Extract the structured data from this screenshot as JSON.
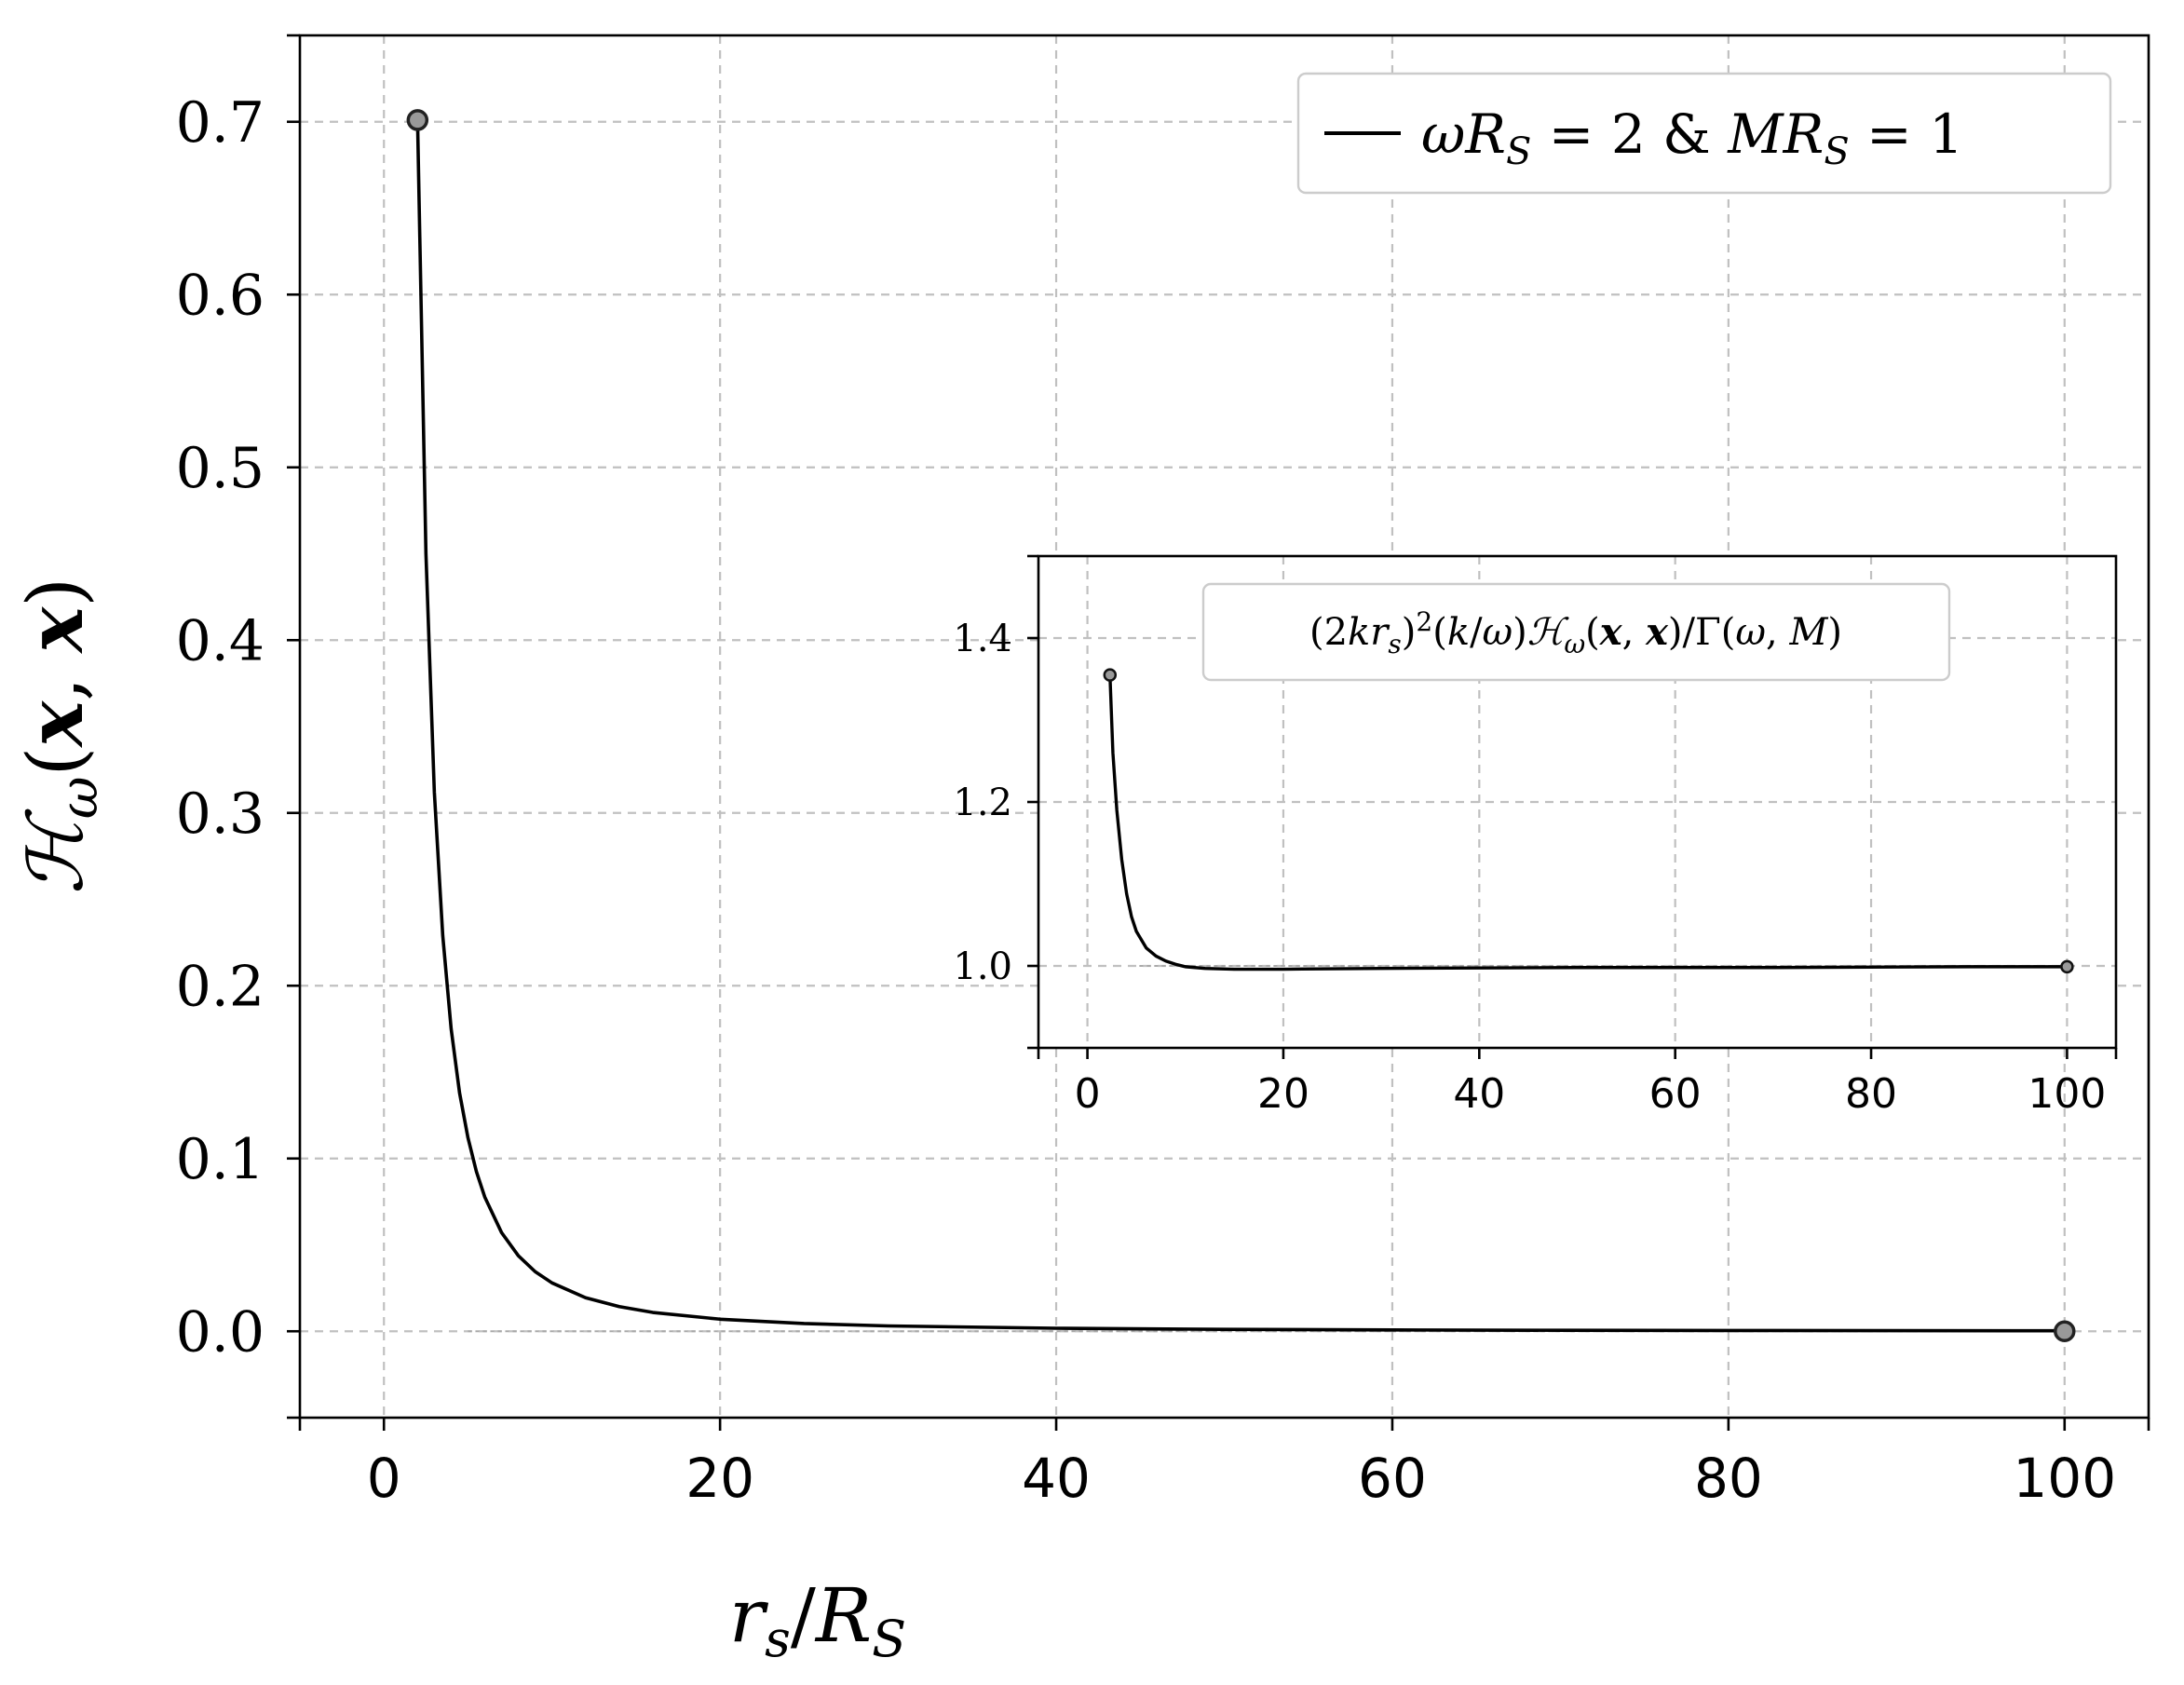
{
  "chart_data": [
    {
      "type": "line",
      "role": "main",
      "xlabel": "r_s / R_S",
      "ylabel": "ℋ_ω(x, x)",
      "xlim": [
        -5,
        105
      ],
      "ylim": [
        -0.05,
        0.75
      ],
      "xticks": [
        0,
        20,
        40,
        60,
        80,
        100
      ],
      "yticks": [
        0.0,
        0.1,
        0.2,
        0.3,
        0.4,
        0.5,
        0.6,
        0.7
      ],
      "xtick_labels": [
        "0",
        "20",
        "40",
        "60",
        "80",
        "100"
      ],
      "ytick_labels": [
        "0.0",
        "0.1",
        "0.2",
        "0.3",
        "0.4",
        "0.5",
        "0.6",
        "0.7"
      ],
      "grid": true,
      "legend_position": "top-right",
      "series": [
        {
          "name": "ωR_S = 2 & MR_S = 1",
          "color": "#000000",
          "x": [
            2,
            2.5,
            3,
            3.5,
            4,
            4.5,
            5,
            5.5,
            6,
            7,
            8,
            9,
            10,
            12,
            14,
            16,
            20,
            25,
            30,
            40,
            50,
            60,
            70,
            80,
            90,
            100
          ],
          "y": [
            0.701,
            0.45,
            0.312,
            0.229,
            0.175,
            0.138,
            0.112,
            0.0925,
            0.0777,
            0.0571,
            0.0437,
            0.0345,
            0.028,
            0.0194,
            0.0143,
            0.0109,
            0.007,
            0.0045,
            0.0031,
            0.00175,
            0.00112,
            0.00078,
            0.00057,
            0.00044,
            0.00035,
            0.00028
          ]
        }
      ],
      "markers": [
        {
          "x": 2,
          "y": 0.701,
          "fill": "#999999",
          "stroke": "#222222"
        },
        {
          "x": 100,
          "y": 0.0,
          "fill": "#999999",
          "stroke": "#222222"
        }
      ],
      "reference_lines": [
        {
          "y": 0.0,
          "style": "dotted"
        }
      ]
    },
    {
      "type": "line",
      "role": "inset",
      "annotation": "(2kr_s)²(k/ω)ℋ_ω(x, x)/Γ(ω, M)",
      "xlim": [
        -5,
        105
      ],
      "ylim": [
        0.9,
        1.5
      ],
      "xticks": [
        0,
        20,
        40,
        60,
        80,
        100
      ],
      "yticks": [
        1.0,
        1.2,
        1.4
      ],
      "xtick_labels": [
        "0",
        "20",
        "40",
        "60",
        "80",
        "100"
      ],
      "ytick_labels": [
        "1.0",
        "1.2",
        "1.4"
      ],
      "grid": true,
      "series": [
        {
          "color": "#000000",
          "x": [
            2.3,
            2.6,
            3,
            3.5,
            4,
            4.5,
            5,
            6,
            7,
            8,
            9,
            10,
            12,
            15,
            20,
            30,
            50,
            70,
            90,
            100
          ],
          "y": [
            1.355,
            1.26,
            1.19,
            1.13,
            1.088,
            1.06,
            1.042,
            1.022,
            1.012,
            1.006,
            1.002,
            0.999,
            0.997,
            0.996,
            0.996,
            0.997,
            0.998,
            0.998,
            0.999,
            0.999
          ]
        }
      ],
      "markers": [
        {
          "x": 2.3,
          "y": 1.355,
          "fill": "#999999",
          "stroke": "#111111"
        },
        {
          "x": 100,
          "y": 0.999,
          "fill": "#999999",
          "stroke": "#111111"
        }
      ],
      "reference_lines": [
        {
          "y": 1.0,
          "style": "dotted"
        }
      ]
    }
  ]
}
